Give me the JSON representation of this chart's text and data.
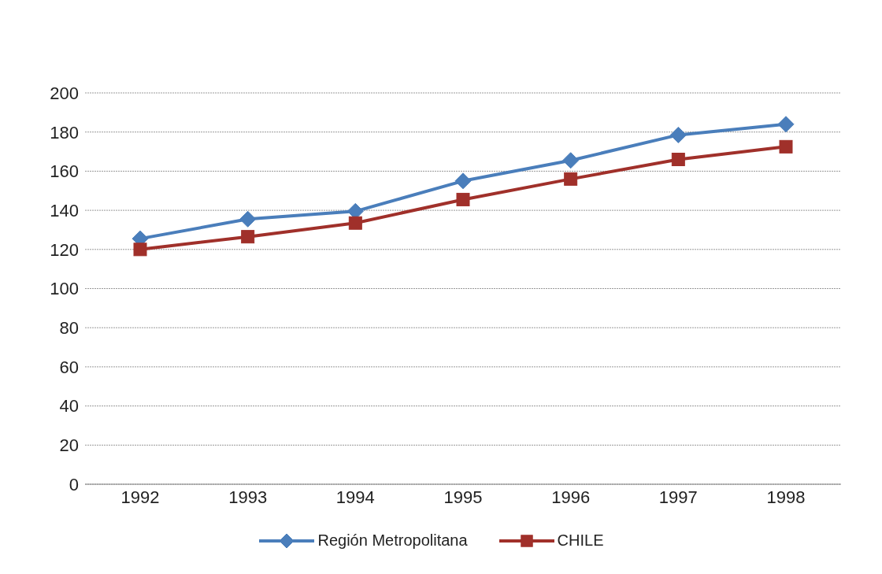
{
  "chart_data": {
    "type": "line",
    "categories": [
      "1992",
      "1993",
      "1994",
      "1995",
      "1996",
      "1997",
      "1998"
    ],
    "series": [
      {
        "name": "Región Metropolitana",
        "color": "#4a7ebb",
        "marker": "diamond",
        "values": [
          125.5,
          135.5,
          139.5,
          155,
          165.5,
          178.5,
          184
        ]
      },
      {
        "name": "CHILE",
        "color": "#a0302a",
        "marker": "square",
        "values": [
          120,
          126.5,
          133.5,
          145.5,
          156,
          166,
          172.5
        ]
      }
    ],
    "ylim": [
      0,
      200
    ],
    "yticks": [
      0,
      20,
      40,
      60,
      80,
      100,
      120,
      140,
      160,
      180,
      200
    ],
    "grid": "y",
    "legend": "bottom"
  }
}
